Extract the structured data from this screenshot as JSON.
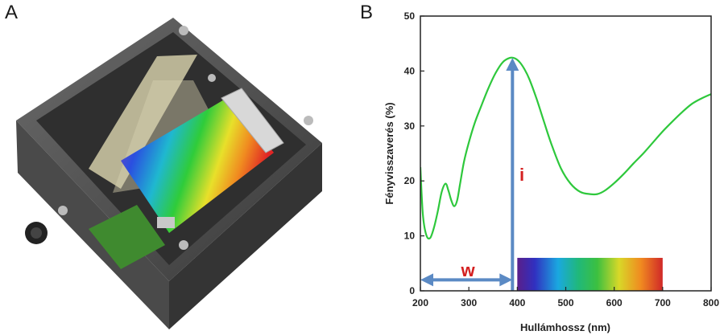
{
  "panels": {
    "left_letter": "A",
    "right_letter": "B"
  },
  "chart_data": {
    "type": "line",
    "title": "",
    "xlabel": "Hullámhossz (nm)",
    "ylabel": "Fényvisszaverés (%)",
    "xlim": [
      200,
      800
    ],
    "ylim": [
      0,
      50
    ],
    "xticks": [
      200,
      300,
      400,
      500,
      600,
      700,
      800
    ],
    "yticks": [
      0,
      10,
      20,
      30,
      40,
      50
    ],
    "grid": false,
    "line_color": "#2ec83c",
    "series": [
      {
        "x": [
          200,
          205,
          212,
          220,
          228,
          236,
          244,
          252,
          258,
          264,
          270,
          276,
          282,
          290,
          300,
          312,
          325,
          340,
          355,
          370,
          385,
          395,
          405,
          415,
          425,
          440,
          455,
          470,
          490,
          510,
          530,
          550,
          565,
          580,
          600,
          620,
          640,
          660,
          680,
          700,
          720,
          740,
          760,
          780,
          800
        ],
        "y": [
          22.5,
          14,
          10.2,
          9.6,
          11.5,
          14.5,
          18,
          19.5,
          18.2,
          16.4,
          15.4,
          16.5,
          19.5,
          23.5,
          27,
          30.5,
          33.5,
          36.8,
          39.6,
          41.6,
          42.4,
          42.3,
          41.6,
          40.3,
          38.5,
          34.9,
          30.8,
          26.8,
          22.3,
          19.5,
          18,
          17.6,
          17.6,
          18.2,
          19.6,
          21.3,
          23.2,
          25,
          27,
          29,
          30.8,
          32.5,
          34,
          35,
          35.8
        ]
      }
    ],
    "annotations": [
      {
        "text": "i",
        "color": "#d42020"
      },
      {
        "text": "w",
        "color": "#d42020"
      }
    ],
    "arrow_color": "#5b8ac4",
    "marks": {
      "vertical_arrow": {
        "x": 390,
        "y_from": 0,
        "y_to": 42.4
      },
      "horizontal_arrow": {
        "x_from": 200,
        "x_to": 390,
        "y": 2
      },
      "spectrum_band": {
        "x_from": 400,
        "x_to": 700,
        "y_from": 0,
        "y_to": 6
      }
    }
  }
}
